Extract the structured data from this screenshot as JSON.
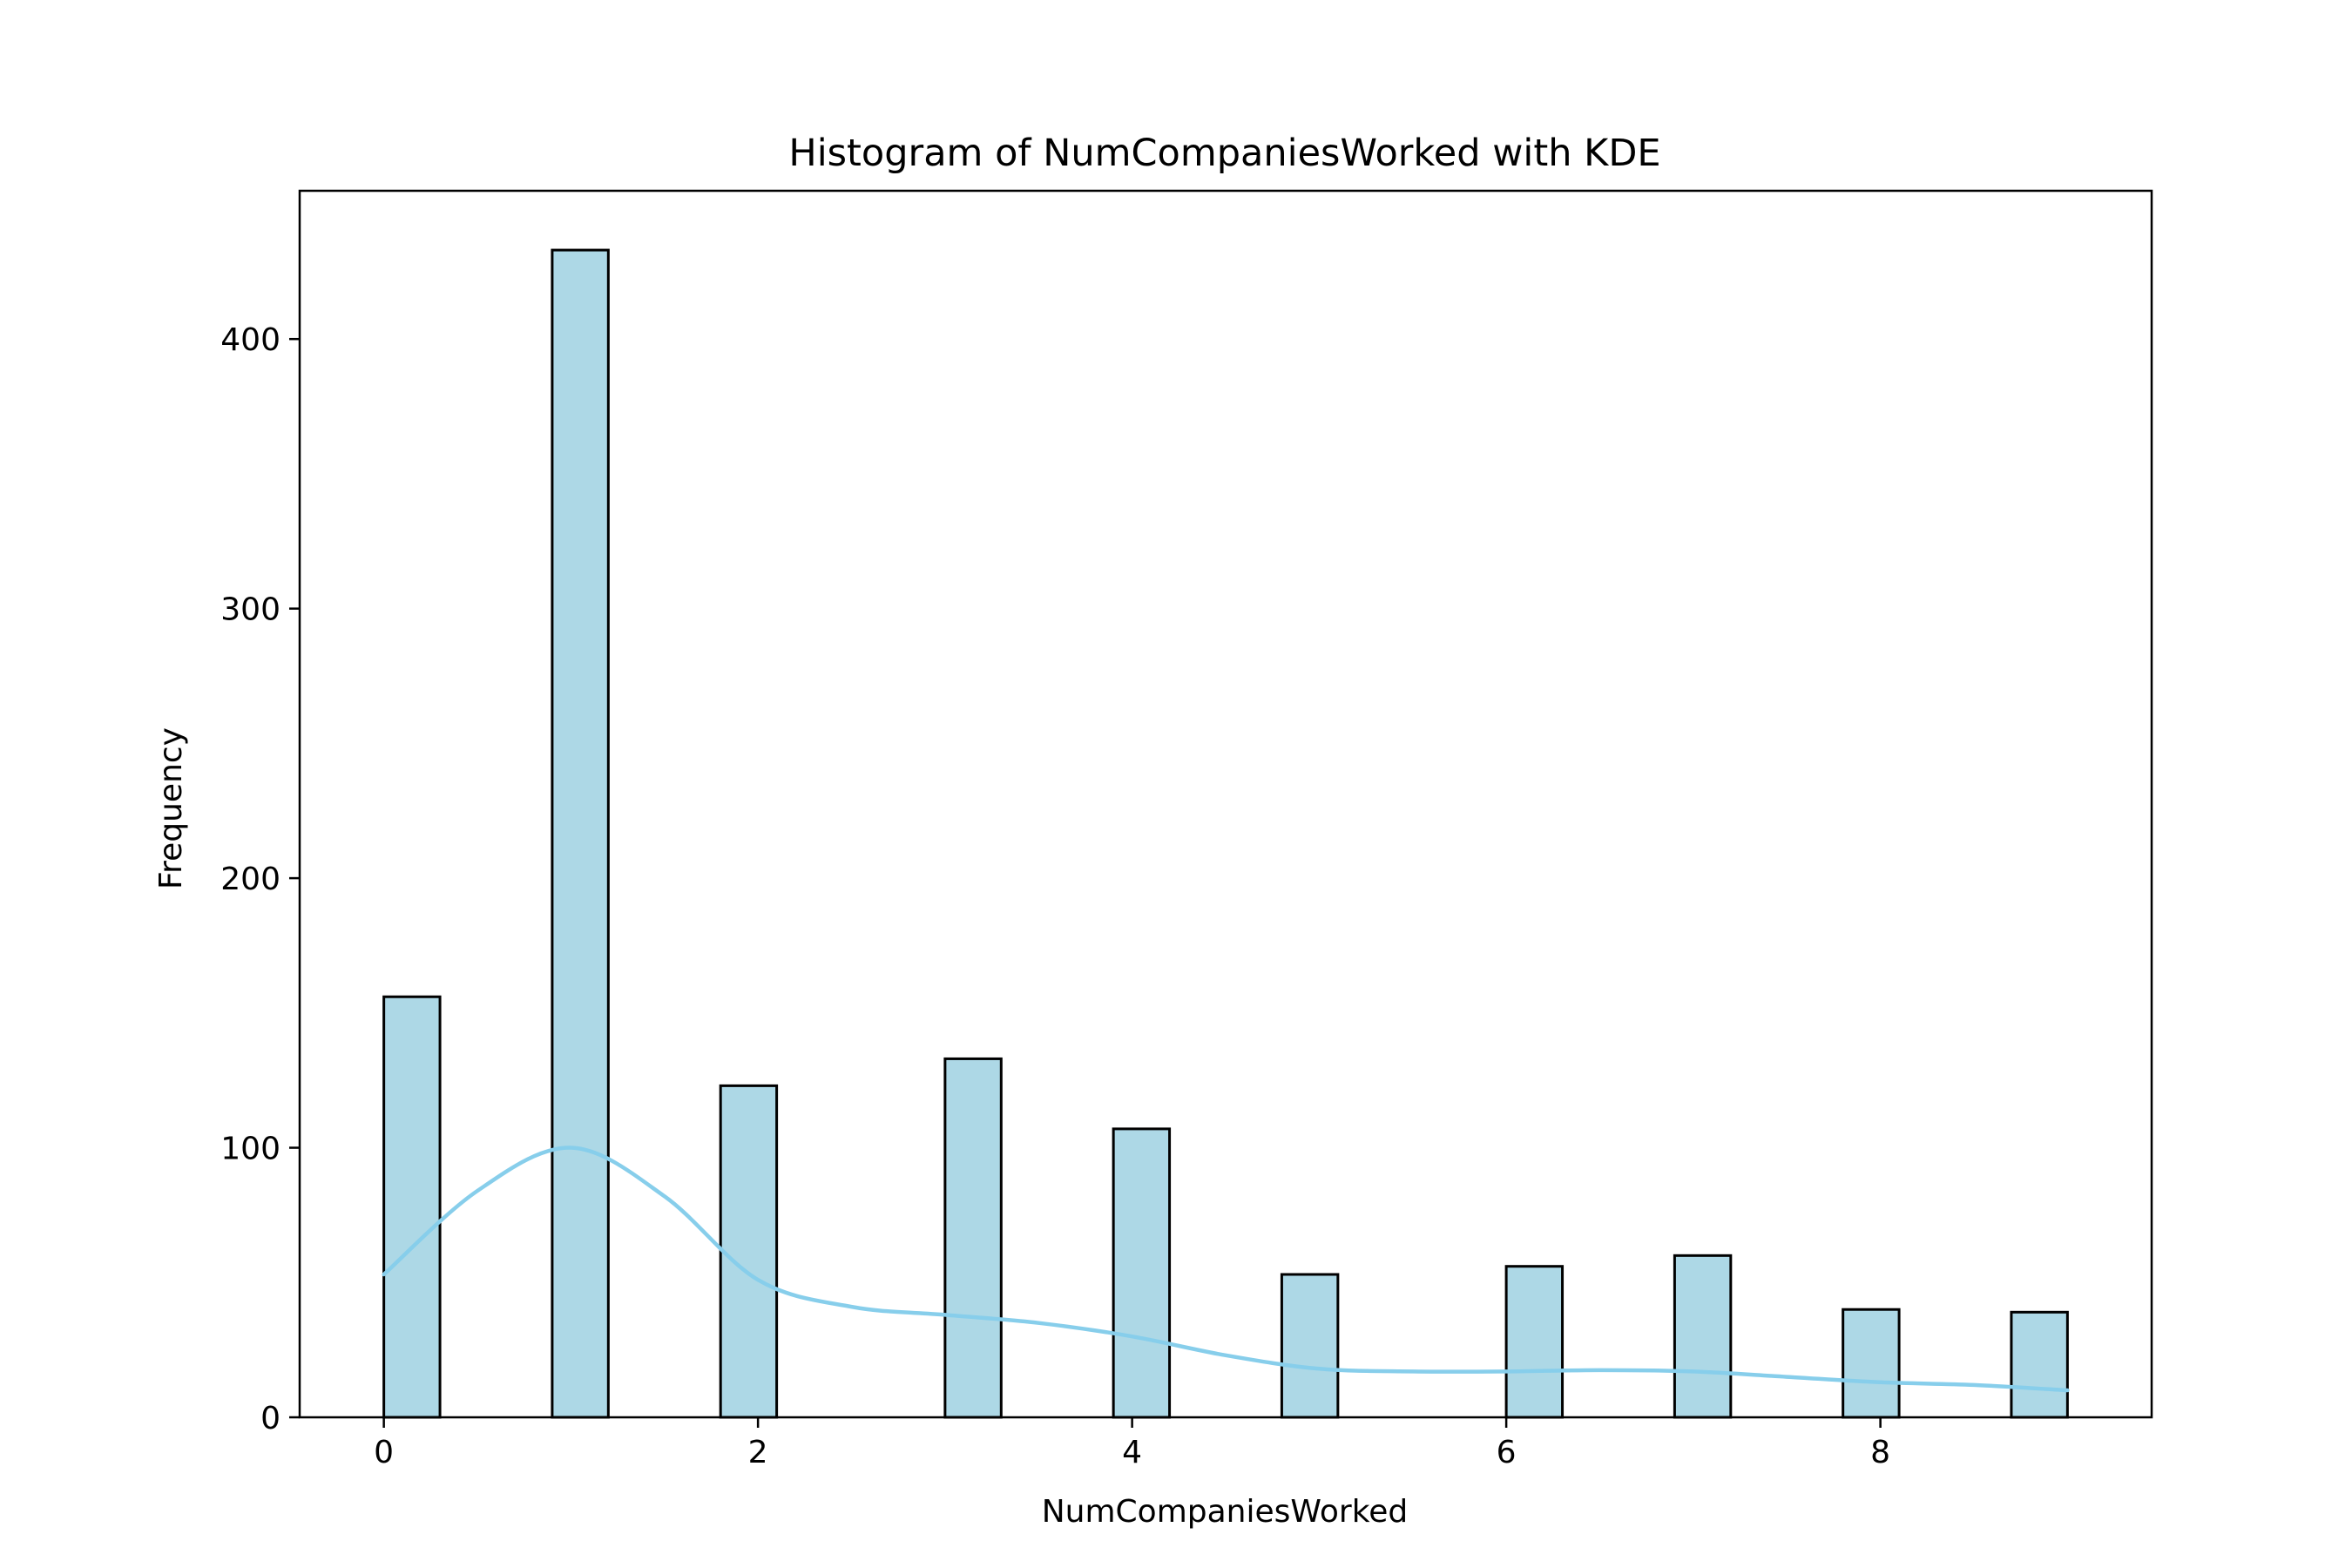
{
  "chart_data": {
    "type": "bar",
    "title": "Histogram of NumCompaniesWorked with KDE",
    "xlabel": "NumCompaniesWorked",
    "ylabel": "Frequency",
    "xlim": [
      -0.45,
      9.45
    ],
    "ylim": [
      0,
      455
    ],
    "x_ticks": [
      0,
      2,
      4,
      6,
      8
    ],
    "y_ticks": [
      0,
      100,
      200,
      300,
      400
    ],
    "grid": false,
    "bar_color": "#add8e6",
    "bar_edge_color": "#000000",
    "kde_color": "#87ceeb",
    "bins": [
      {
        "x0": 0.0,
        "x1": 0.3,
        "count": 156
      },
      {
        "x0": 0.9,
        "x1": 1.2,
        "count": 433
      },
      {
        "x0": 1.8,
        "x1": 2.1,
        "count": 123
      },
      {
        "x0": 3.0,
        "x1": 3.3,
        "count": 133
      },
      {
        "x0": 3.9,
        "x1": 4.2,
        "count": 107
      },
      {
        "x0": 4.8,
        "x1": 5.1,
        "count": 53
      },
      {
        "x0": 6.0,
        "x1": 6.3,
        "count": 56
      },
      {
        "x0": 6.9,
        "x1": 7.2,
        "count": 60
      },
      {
        "x0": 7.8,
        "x1": 8.1,
        "count": 40
      },
      {
        "x0": 8.7,
        "x1": 9.0,
        "count": 39
      }
    ],
    "kde": {
      "x": [
        0,
        0.5,
        1.0,
        1.5,
        2.0,
        2.5,
        3.0,
        3.5,
        4.0,
        4.5,
        5.0,
        5.5,
        6.0,
        6.5,
        7.0,
        7.5,
        8.0,
        8.5,
        9.0
      ],
      "y": [
        53,
        84,
        100,
        82,
        51,
        41,
        38,
        35,
        30,
        23,
        18,
        17,
        17,
        17.5,
        17,
        15,
        13,
        12,
        10
      ]
    }
  }
}
